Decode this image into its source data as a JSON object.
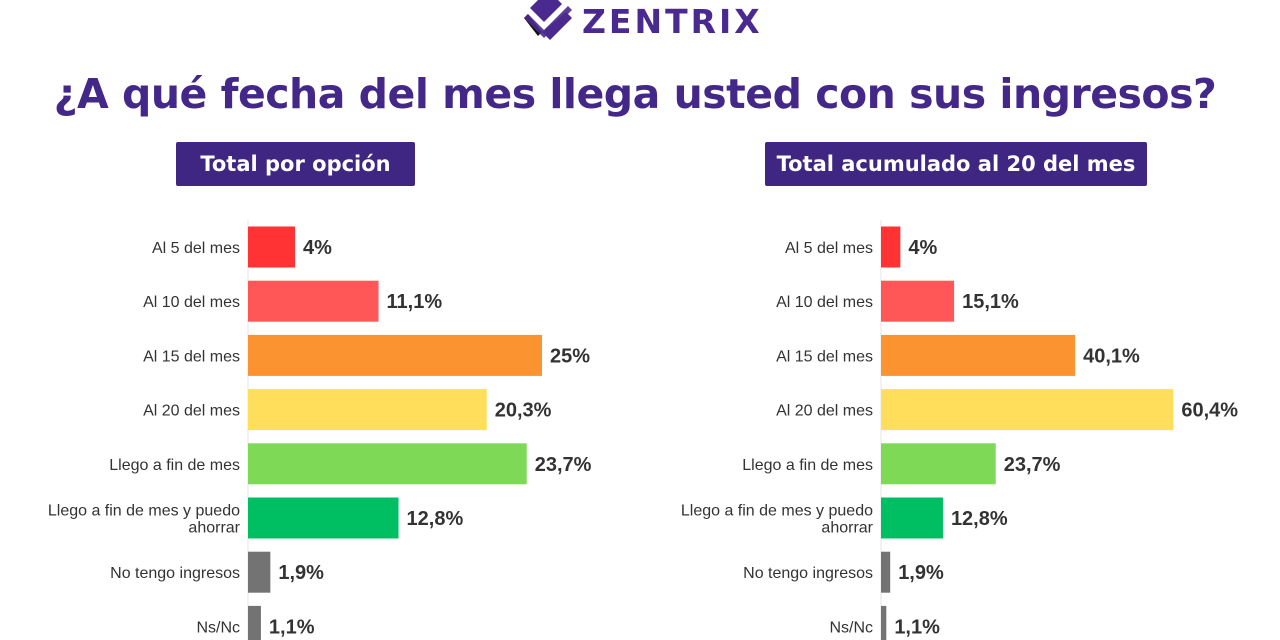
{
  "brand": {
    "name": "ZENTRIX",
    "color": "#4b2a8f"
  },
  "title": "¿A qué fecha del mes llega usted con sus ingresos?",
  "chart_data": [
    {
      "type": "bar",
      "orientation": "horizontal",
      "title": "Total por opción",
      "categories": [
        "Al 5 del mes",
        "Al 10 del mes",
        "Al 15 del mes",
        "Al 20 del mes",
        "Llego a fin de mes",
        "Llego a fin de mes y puedo ahorrar",
        "No tengo ingresos",
        "Ns/Nc"
      ],
      "values": [
        4,
        11.1,
        25,
        20.3,
        23.7,
        12.8,
        1.9,
        1.1
      ],
      "labels": [
        "4%",
        "11,1%",
        "25%",
        "20,3%",
        "23,7%",
        "12,8%",
        "1,9%",
        "1,1%"
      ],
      "colors": [
        "#ff3333",
        "#ff5757",
        "#fa9330",
        "#ffde5c",
        "#7ed957",
        "#00bf63",
        "#737373",
        "#737373"
      ],
      "grid": false
    },
    {
      "type": "bar",
      "orientation": "horizontal",
      "title": "Total acumulado al 20 del mes",
      "categories": [
        "Al 5 del mes",
        "Al 10 del mes",
        "Al 15 del mes",
        "Al 20 del mes",
        "Llego a fin de mes",
        "Llego a fin de mes y puedo ahorrar",
        "No tengo ingresos",
        "Ns/Nc"
      ],
      "values": [
        4,
        15.1,
        40.1,
        60.4,
        23.7,
        12.8,
        1.9,
        1.1
      ],
      "labels": [
        "4%",
        "15,1%",
        "40,1%",
        "60,4%",
        "23,7%",
        "12,8%",
        "1,9%",
        "1,1%"
      ],
      "colors": [
        "#ff3333",
        "#ff5757",
        "#fa9330",
        "#ffde5c",
        "#7ed957",
        "#00bf63",
        "#737373",
        "#737373"
      ],
      "grid": false
    }
  ]
}
